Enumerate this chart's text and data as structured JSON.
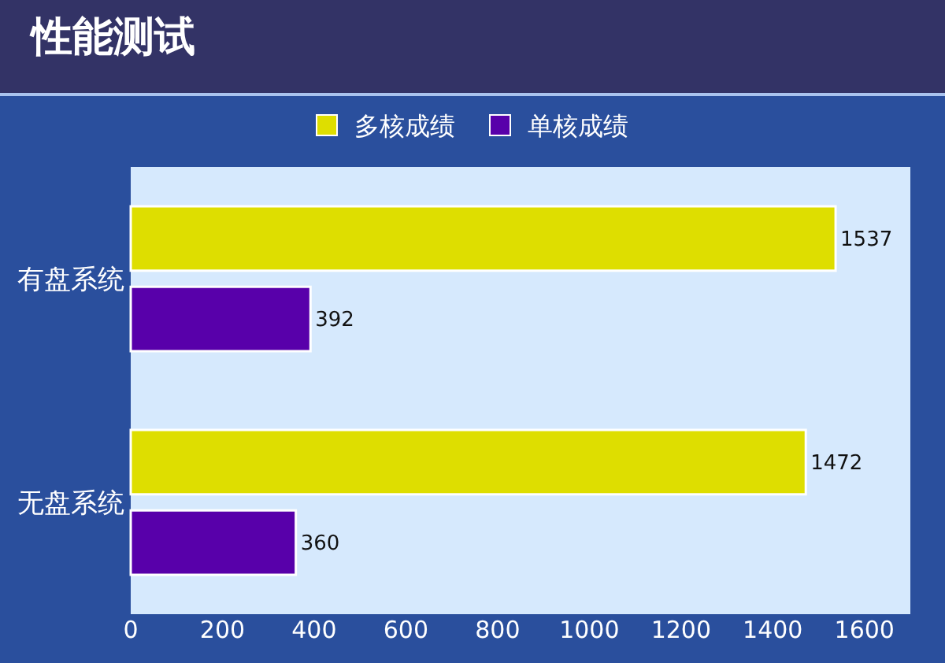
{
  "chart_data": {
    "type": "bar",
    "orientation": "horizontal",
    "title": "性能测试",
    "categories": [
      "有盘系统",
      "无盘系统"
    ],
    "series": [
      {
        "name": "多核成绩",
        "color": "#dede00",
        "values": [
          1537,
          1472
        ]
      },
      {
        "name": "单核成绩",
        "color": "#5800aa",
        "values": [
          392,
          360
        ]
      }
    ],
    "xlim": [
      0,
      1700
    ],
    "xticks": [
      0,
      200,
      400,
      600,
      800,
      1000,
      1200,
      1400,
      1600
    ],
    "data_labels": true,
    "legend": "top",
    "grid": false
  }
}
